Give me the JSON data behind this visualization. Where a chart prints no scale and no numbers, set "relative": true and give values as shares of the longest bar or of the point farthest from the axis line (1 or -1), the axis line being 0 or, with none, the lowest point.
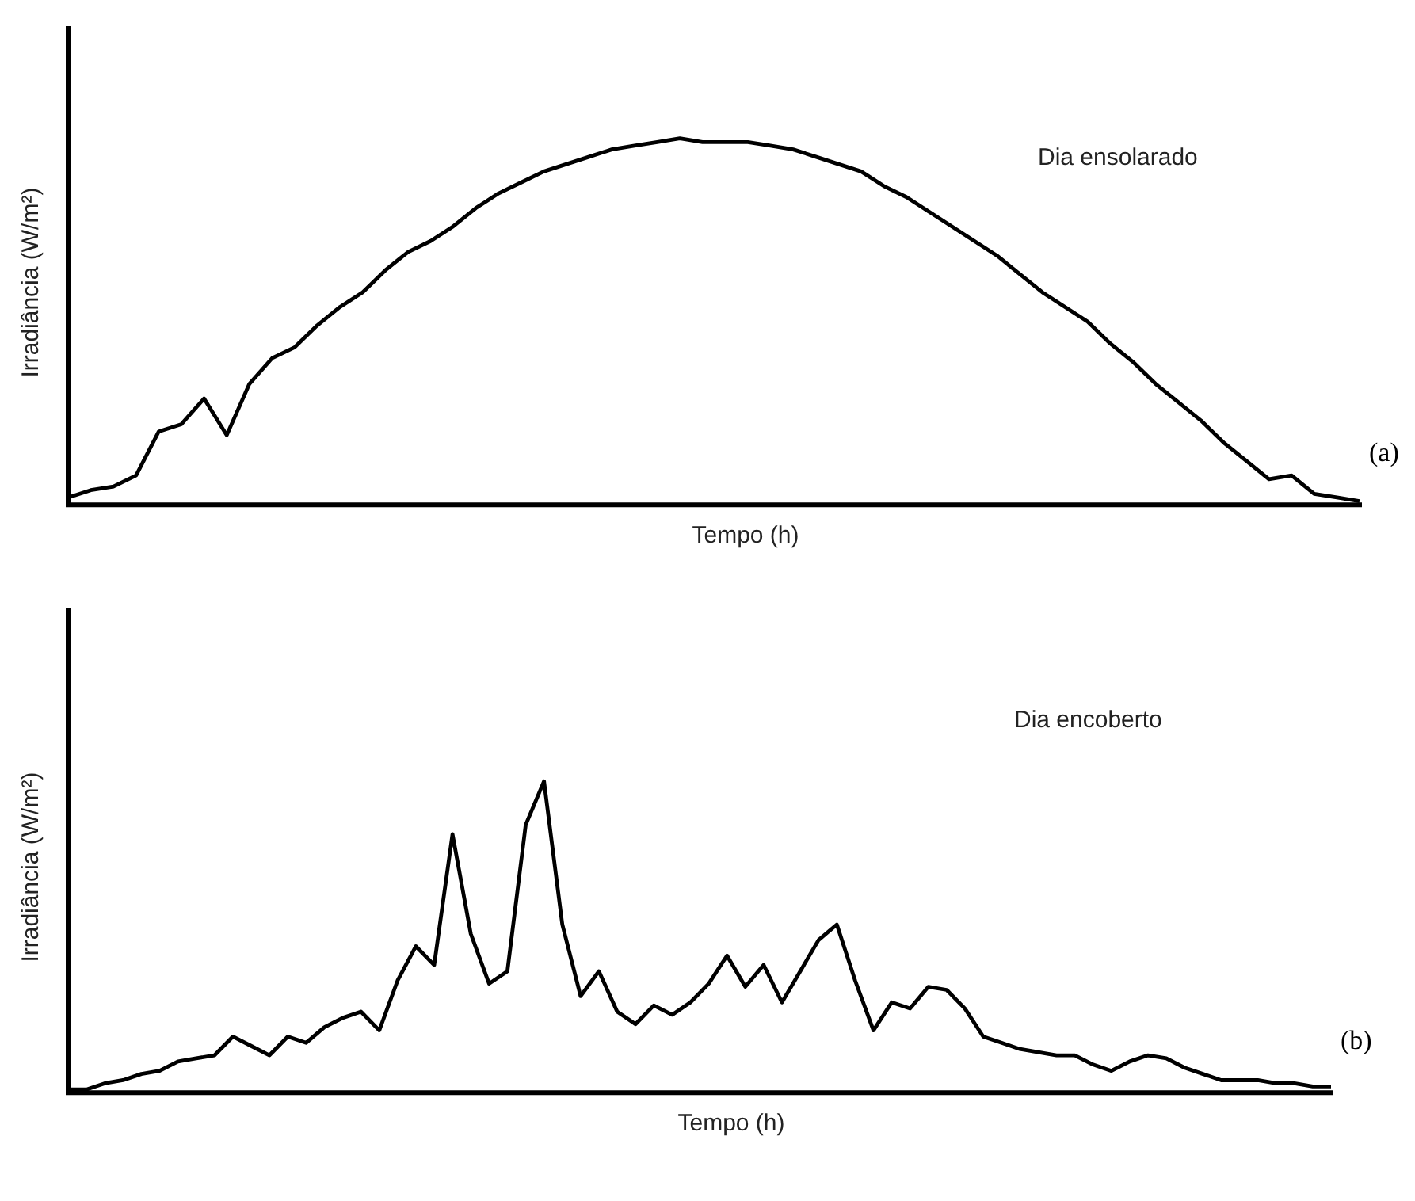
{
  "chart_data": [
    {
      "type": "line",
      "relative": true,
      "xlabel": "Tempo (h)",
      "ylabel": "Irradiância (W/m²)",
      "annotations": [
        "Dia ensolarado",
        "(a)"
      ],
      "legend": false,
      "marker": "none",
      "categories": [
        null,
        null,
        null,
        null,
        null,
        null,
        null,
        null,
        null,
        null,
        null,
        null,
        null,
        null,
        null,
        null,
        null,
        null,
        null,
        null,
        null,
        null,
        null,
        null,
        null,
        null,
        null,
        null,
        null,
        null,
        null,
        null,
        null,
        null,
        null,
        null,
        null,
        null,
        null,
        null,
        null,
        null,
        null,
        null,
        null,
        null,
        null,
        null,
        null,
        null,
        null,
        null,
        null,
        null,
        null,
        null,
        null,
        null
      ],
      "series": [
        {
          "color": "#000000",
          "values": [
            0.02,
            0.04,
            0.05,
            0.08,
            0.2,
            0.22,
            0.29,
            0.19,
            0.33,
            0.4,
            0.43,
            0.49,
            0.54,
            0.58,
            0.64,
            0.69,
            0.72,
            0.76,
            0.81,
            0.85,
            0.88,
            0.91,
            0.93,
            0.95,
            0.97,
            0.98,
            0.99,
            1,
            0.99,
            0.99,
            0.99,
            0.98,
            0.97,
            0.95,
            0.93,
            0.91,
            0.87,
            0.84,
            0.8,
            0.76,
            0.72,
            0.68,
            0.63,
            0.58,
            0.54,
            0.5,
            0.44,
            0.39,
            0.33,
            0.28,
            0.23,
            0.17,
            0.12,
            0.07,
            0.08,
            0.03,
            0.02,
            0.01
          ]
        }
      ]
    },
    {
      "type": "line",
      "relative": true,
      "xlabel": "Tempo (h)",
      "ylabel": "Irradiância (W/m²)",
      "annotations": [
        "Dia encoberto",
        "(b)"
      ],
      "legend": false,
      "marker": "none",
      "categories": [
        null,
        null,
        null,
        null,
        null,
        null,
        null,
        null,
        null,
        null,
        null,
        null,
        null,
        null,
        null,
        null,
        null,
        null,
        null,
        null,
        null,
        null,
        null,
        null,
        null,
        null,
        null,
        null,
        null,
        null,
        null,
        null,
        null,
        null,
        null,
        null,
        null,
        null,
        null,
        null,
        null,
        null,
        null,
        null,
        null,
        null,
        null,
        null,
        null,
        null,
        null,
        null,
        null,
        null,
        null,
        null,
        null,
        null,
        null,
        null,
        null,
        null,
        null,
        null,
        null,
        null,
        null,
        null,
        null,
        null
      ],
      "series": [
        {
          "color": "#000000",
          "values": [
            0.01,
            0.01,
            0.03,
            0.04,
            0.06,
            0.07,
            0.1,
            0.11,
            0.12,
            0.18,
            0.15,
            0.12,
            0.18,
            0.16,
            0.21,
            0.24,
            0.26,
            0.2,
            0.36,
            0.47,
            0.41,
            0.83,
            0.51,
            0.35,
            0.39,
            0.86,
            1,
            0.54,
            0.31,
            0.39,
            0.26,
            0.22,
            0.28,
            0.25,
            0.29,
            0.35,
            0.44,
            0.34,
            0.41,
            0.29,
            0.39,
            0.49,
            0.54,
            0.36,
            0.2,
            0.29,
            0.27,
            0.34,
            0.33,
            0.27,
            0.18,
            0.16,
            0.14,
            0.13,
            0.12,
            0.12,
            0.09,
            0.07,
            0.1,
            0.12,
            0.11,
            0.08,
            0.06,
            0.04,
            0.04,
            0.04,
            0.03,
            0.03,
            0.02,
            0.02
          ]
        }
      ]
    }
  ]
}
